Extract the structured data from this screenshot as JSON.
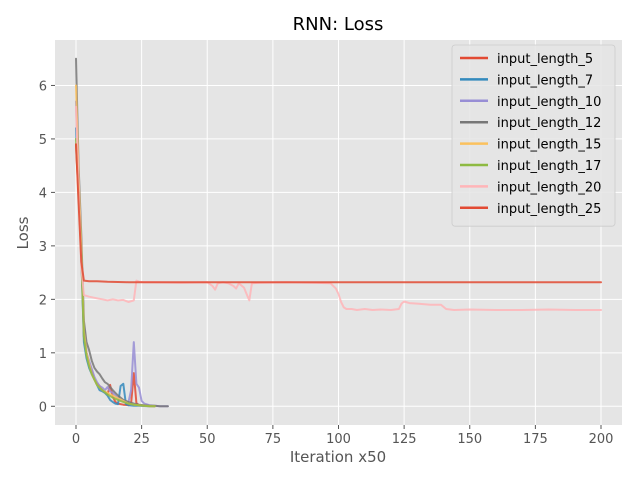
{
  "chart_data": {
    "type": "line",
    "title": "RNN: Loss",
    "xlabel": "Iteration x50",
    "ylabel": "Loss",
    "xlim": [
      -8,
      208
    ],
    "ylim": [
      -0.35,
      6.85
    ],
    "xticks": [
      0,
      25,
      50,
      75,
      100,
      125,
      150,
      175,
      200
    ],
    "yticks": [
      0,
      1,
      2,
      3,
      4,
      5,
      6
    ],
    "grid": true,
    "legend_position": "top-right",
    "series": [
      {
        "name": "input_length_5",
        "color": "#e24a33",
        "points": [
          [
            0,
            4.9
          ],
          [
            1,
            3.9
          ],
          [
            2,
            2.9
          ],
          [
            3,
            1.3
          ],
          [
            4,
            1.0
          ],
          [
            5,
            0.8
          ],
          [
            6,
            0.65
          ],
          [
            7,
            0.5
          ],
          [
            8,
            0.42
          ],
          [
            9,
            0.38
          ],
          [
            10,
            0.3
          ],
          [
            11,
            0.27
          ],
          [
            12,
            0.22
          ],
          [
            13,
            0.4
          ],
          [
            14,
            0.18
          ],
          [
            15,
            0.08
          ],
          [
            16,
            0.05
          ],
          [
            18,
            0.03
          ],
          [
            20,
            0.02
          ],
          [
            21,
            0.05
          ],
          [
            22,
            0.62
          ],
          [
            23,
            0.06
          ],
          [
            24,
            0.02
          ],
          [
            26,
            0.01
          ],
          [
            28,
            0.005
          ],
          [
            30,
            0.0
          ]
        ]
      },
      {
        "name": "input_length_7",
        "color": "#348abd",
        "points": [
          [
            0,
            5.2
          ],
          [
            1,
            4.0
          ],
          [
            2,
            2.8
          ],
          [
            3,
            1.2
          ],
          [
            4,
            0.9
          ],
          [
            5,
            0.72
          ],
          [
            6,
            0.6
          ],
          [
            7,
            0.5
          ],
          [
            8,
            0.4
          ],
          [
            9,
            0.3
          ],
          [
            10,
            0.28
          ],
          [
            11,
            0.25
          ],
          [
            12,
            0.2
          ],
          [
            13,
            0.12
          ],
          [
            14,
            0.08
          ],
          [
            15,
            0.05
          ],
          [
            16,
            0.04
          ],
          [
            17,
            0.38
          ],
          [
            18,
            0.42
          ],
          [
            19,
            0.04
          ],
          [
            20,
            0.02
          ],
          [
            22,
            0.01
          ],
          [
            24,
            0.01
          ],
          [
            26,
            0.005
          ],
          [
            28,
            0.0
          ],
          [
            30,
            0.0
          ]
        ]
      },
      {
        "name": "input_length_10",
        "color": "#988ed5",
        "points": [
          [
            0,
            5.7
          ],
          [
            1,
            4.1
          ],
          [
            2,
            3.0
          ],
          [
            3,
            1.5
          ],
          [
            4,
            1.0
          ],
          [
            5,
            0.85
          ],
          [
            6,
            0.7
          ],
          [
            7,
            0.55
          ],
          [
            8,
            0.45
          ],
          [
            9,
            0.38
          ],
          [
            10,
            0.35
          ],
          [
            11,
            0.3
          ],
          [
            12,
            0.36
          ],
          [
            13,
            0.28
          ],
          [
            14,
            0.25
          ],
          [
            15,
            0.2
          ],
          [
            16,
            0.15
          ],
          [
            17,
            0.12
          ],
          [
            18,
            0.1
          ],
          [
            19,
            0.08
          ],
          [
            20,
            0.08
          ],
          [
            21,
            0.3
          ],
          [
            22,
            1.2
          ],
          [
            23,
            0.42
          ],
          [
            24,
            0.35
          ],
          [
            25,
            0.1
          ],
          [
            26,
            0.05
          ],
          [
            28,
            0.02
          ],
          [
            30,
            0.01
          ],
          [
            32,
            0.0
          ],
          [
            35,
            0.0
          ]
        ]
      },
      {
        "name": "input_length_12",
        "color": "#777777",
        "points": [
          [
            0,
            6.5
          ],
          [
            1,
            4.5
          ],
          [
            2,
            3.2
          ],
          [
            3,
            1.6
          ],
          [
            4,
            1.2
          ],
          [
            5,
            1.05
          ],
          [
            6,
            0.85
          ],
          [
            7,
            0.72
          ],
          [
            8,
            0.65
          ],
          [
            9,
            0.6
          ],
          [
            10,
            0.52
          ],
          [
            11,
            0.45
          ],
          [
            12,
            0.42
          ],
          [
            13,
            0.36
          ],
          [
            14,
            0.3
          ],
          [
            15,
            0.25
          ],
          [
            16,
            0.2
          ],
          [
            17,
            0.16
          ],
          [
            18,
            0.12
          ],
          [
            19,
            0.1
          ],
          [
            20,
            0.08
          ],
          [
            22,
            0.05
          ],
          [
            24,
            0.03
          ],
          [
            26,
            0.02
          ],
          [
            28,
            0.01
          ],
          [
            30,
            0.01
          ],
          [
            32,
            0.0
          ],
          [
            35,
            0.0
          ]
        ]
      },
      {
        "name": "input_length_15",
        "color": "#fbc15e",
        "points": [
          [
            0,
            6.0
          ],
          [
            1,
            4.3
          ],
          [
            2,
            3.0
          ],
          [
            3,
            1.4
          ],
          [
            4,
            1.0
          ],
          [
            5,
            0.8
          ],
          [
            6,
            0.6
          ],
          [
            7,
            0.5
          ],
          [
            8,
            0.4
          ],
          [
            9,
            0.35
          ],
          [
            10,
            0.3
          ],
          [
            12,
            0.25
          ],
          [
            14,
            0.2
          ],
          [
            16,
            0.15
          ],
          [
            18,
            0.1
          ],
          [
            20,
            0.05
          ],
          [
            22,
            0.03
          ],
          [
            24,
            0.02
          ],
          [
            26,
            0.01
          ],
          [
            28,
            0.0
          ],
          [
            30,
            0.0
          ]
        ]
      },
      {
        "name": "input_length_17",
        "color": "#8eba42",
        "points": [
          [
            0,
            5.0
          ],
          [
            1,
            4.0
          ],
          [
            2,
            2.8
          ],
          [
            3,
            1.3
          ],
          [
            4,
            0.95
          ],
          [
            5,
            0.75
          ],
          [
            6,
            0.6
          ],
          [
            7,
            0.5
          ],
          [
            8,
            0.4
          ],
          [
            9,
            0.35
          ],
          [
            10,
            0.3
          ],
          [
            12,
            0.22
          ],
          [
            14,
            0.16
          ],
          [
            16,
            0.12
          ],
          [
            18,
            0.08
          ],
          [
            20,
            0.05
          ],
          [
            22,
            0.03
          ],
          [
            24,
            0.02
          ],
          [
            26,
            0.01
          ],
          [
            28,
            0.0
          ],
          [
            30,
            0.0
          ]
        ]
      },
      {
        "name": "input_length_20",
        "color": "#ffb5b8",
        "points": [
          [
            0,
            5.6
          ],
          [
            1,
            4.1
          ],
          [
            2,
            2.6
          ],
          [
            3,
            2.08
          ],
          [
            5,
            2.05
          ],
          [
            8,
            2.02
          ],
          [
            10,
            2.0
          ],
          [
            12,
            1.98
          ],
          [
            14,
            2.0
          ],
          [
            16,
            1.98
          ],
          [
            18,
            1.99
          ],
          [
            20,
            1.95
          ],
          [
            22,
            1.98
          ],
          [
            23,
            2.35
          ],
          [
            24,
            2.33
          ],
          [
            26,
            2.32
          ],
          [
            30,
            2.32
          ],
          [
            40,
            2.31
          ],
          [
            50,
            2.32
          ],
          [
            52,
            2.25
          ],
          [
            53,
            2.18
          ],
          [
            54,
            2.3
          ],
          [
            56,
            2.32
          ],
          [
            58,
            2.3
          ],
          [
            60,
            2.25
          ],
          [
            61,
            2.2
          ],
          [
            62,
            2.3
          ],
          [
            64,
            2.22
          ],
          [
            65,
            2.1
          ],
          [
            66,
            1.98
          ],
          [
            67,
            2.3
          ],
          [
            70,
            2.31
          ],
          [
            80,
            2.32
          ],
          [
            90,
            2.31
          ],
          [
            97,
            2.3
          ],
          [
            99,
            2.2
          ],
          [
            100,
            2.1
          ],
          [
            101,
            1.95
          ],
          [
            102,
            1.85
          ],
          [
            103,
            1.82
          ],
          [
            105,
            1.82
          ],
          [
            107,
            1.8
          ],
          [
            110,
            1.82
          ],
          [
            113,
            1.8
          ],
          [
            116,
            1.81
          ],
          [
            120,
            1.8
          ],
          [
            123,
            1.82
          ],
          [
            124,
            1.92
          ],
          [
            125,
            1.96
          ],
          [
            127,
            1.93
          ],
          [
            130,
            1.92
          ],
          [
            135,
            1.9
          ],
          [
            139,
            1.9
          ],
          [
            141,
            1.82
          ],
          [
            144,
            1.8
          ],
          [
            150,
            1.81
          ],
          [
            160,
            1.8
          ],
          [
            170,
            1.8
          ],
          [
            180,
            1.81
          ],
          [
            190,
            1.8
          ],
          [
            200,
            1.8
          ]
        ]
      },
      {
        "name": "input_length_25",
        "color": "#e24a33",
        "points": [
          [
            0,
            4.9
          ],
          [
            1,
            3.8
          ],
          [
            2,
            2.7
          ],
          [
            3,
            2.35
          ],
          [
            5,
            2.34
          ],
          [
            8,
            2.34
          ],
          [
            12,
            2.33
          ],
          [
            20,
            2.32
          ],
          [
            50,
            2.32
          ],
          [
            100,
            2.32
          ],
          [
            150,
            2.32
          ],
          [
            200,
            2.32
          ]
        ]
      }
    ]
  }
}
